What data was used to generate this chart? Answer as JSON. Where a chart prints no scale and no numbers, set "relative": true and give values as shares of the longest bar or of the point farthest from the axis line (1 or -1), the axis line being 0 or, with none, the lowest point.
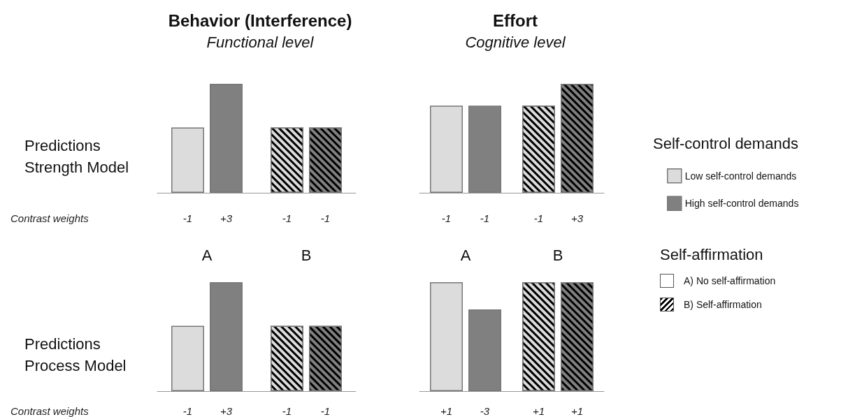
{
  "chart_data": [
    {
      "type": "bar",
      "relative": true,
      "title": "Behavior (Interference)",
      "subtitle": "Functional level",
      "ylabel": "Predictions Strength Model",
      "categories": [
        null,
        null
      ],
      "series": [
        {
          "color": "#dcdcdc",
          "values": [
            0.6,
            0.6
          ]
        },
        {
          "color": "#808080",
          "values": [
            1,
            0.6
          ]
        }
      ],
      "annotations": [
        "Contrast weights",
        "-1",
        "+3",
        "-1",
        "-1"
      ]
    },
    {
      "type": "bar",
      "relative": true,
      "title": "Effort",
      "subtitle": "Cognitive level",
      "categories": [
        null,
        null
      ],
      "legend": "right",
      "legend_title": "Self-control demands",
      "series": [
        {
          "name": "Low self-control demands",
          "color": "#dcdcdc",
          "values": [
            0.8,
            0.8
          ]
        },
        {
          "name": "High self-control demands",
          "color": "#808080",
          "values": [
            0.8,
            1
          ]
        }
      ],
      "annotations": [
        "-1",
        "-1",
        "-1",
        "+3"
      ]
    },
    {
      "type": "bar",
      "relative": true,
      "ylabel": "Predictions Process Model",
      "categories": [
        "A",
        "B"
      ],
      "series": [
        {
          "color": "#dcdcdc",
          "values": [
            0.6,
            0.6
          ]
        },
        {
          "color": "#808080",
          "values": [
            1,
            0.6
          ]
        }
      ],
      "annotations": [
        "Contrast weights",
        "-1",
        "+3",
        "-1",
        "-1"
      ]
    },
    {
      "type": "bar",
      "relative": true,
      "categories": [
        "A",
        "B"
      ],
      "series": [
        {
          "color": "#dcdcdc",
          "values": [
            1,
            1
          ]
        },
        {
          "color": "#808080",
          "values": [
            0.75,
            1
          ]
        }
      ],
      "annotations": [
        "Self-affirmation",
        "A) No self-affirmation",
        "B) Self-affirmation",
        "+1",
        "-3",
        "+1",
        "+1"
      ]
    }
  ]
}
